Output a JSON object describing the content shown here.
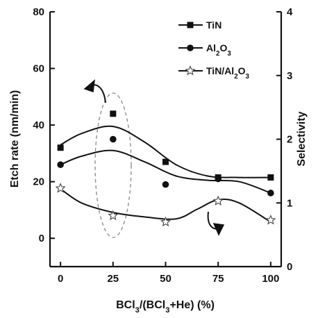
{
  "chart_data": {
    "type": "scatter",
    "xlabel_parts": [
      "BCl",
      "3",
      "/(BCl",
      "3",
      "+He) (%)"
    ],
    "ylabel_left": "Etch rate (nm/min)",
    "ylabel_right": "Selectivity",
    "x_ticks": [
      "0",
      "25",
      "50",
      "75",
      "100"
    ],
    "y_left_ticks": [
      "0",
      "20",
      "40",
      "60",
      "80"
    ],
    "y_right_ticks": [
      "0",
      "1",
      "2",
      "3",
      "4"
    ],
    "xlim": [
      -5,
      105
    ],
    "ylim_left": [
      -10,
      80
    ],
    "ylim_right": [
      0,
      4
    ],
    "legend_position": "top-right",
    "series": [
      {
        "name_parts": [
          "TiN"
        ],
        "axis": "left",
        "marker": "square",
        "x": [
          0,
          25,
          50,
          75,
          100
        ],
        "y": [
          32,
          44,
          27,
          21.5,
          21.5
        ],
        "fit_x": [
          0,
          10,
          25,
          40,
          55,
          70,
          85,
          100
        ],
        "fit_y": [
          33,
          37,
          39.5,
          34,
          26,
          22,
          21.5,
          21.5
        ]
      },
      {
        "name_parts": [
          "Al",
          "2",
          "O",
          "3"
        ],
        "axis": "left",
        "marker": "circle",
        "x": [
          0,
          25,
          50,
          75,
          100
        ],
        "y": [
          26,
          35,
          19,
          21,
          16
        ],
        "fit_x": [
          0,
          10,
          25,
          40,
          55,
          70,
          85,
          100
        ],
        "fit_y": [
          26,
          29,
          31,
          27,
          22,
          20.5,
          20,
          16
        ]
      },
      {
        "name_parts": [
          "TiN/Al",
          "2",
          "O",
          "3"
        ],
        "axis": "right",
        "marker": "star",
        "x": [
          0,
          25,
          50,
          75,
          100
        ],
        "y": [
          1.23,
          0.8,
          0.7,
          1.03,
          0.73
        ],
        "fit_x": [
          0,
          10,
          25,
          40,
          55,
          65,
          75,
          85,
          100
        ],
        "fit_y": [
          1.22,
          1.0,
          0.85,
          0.78,
          0.75,
          0.9,
          1.05,
          1.0,
          0.7
        ]
      }
    ]
  }
}
